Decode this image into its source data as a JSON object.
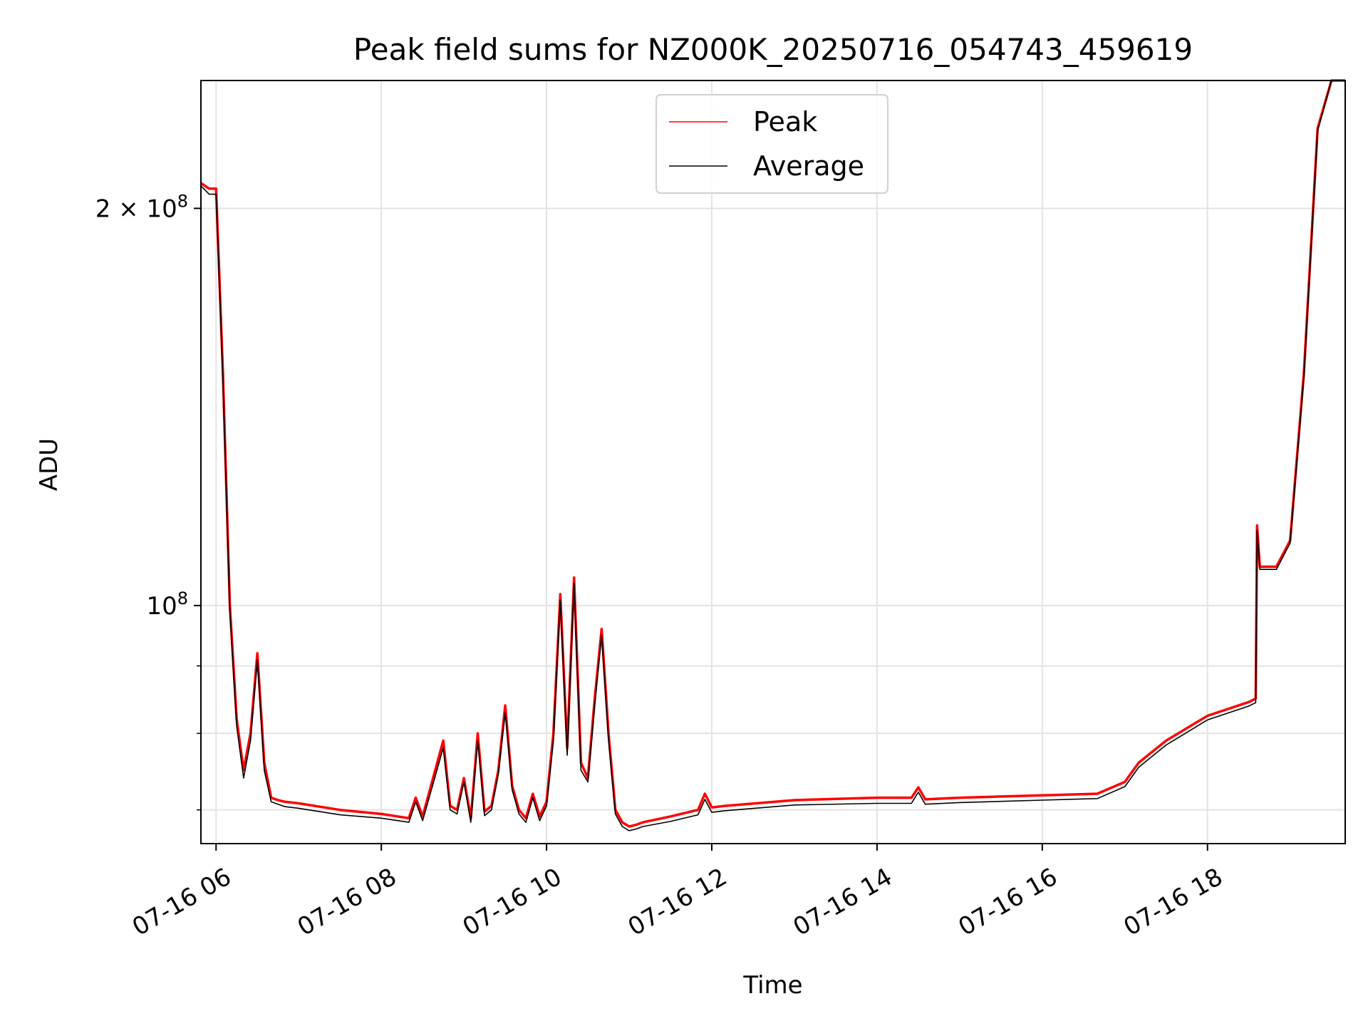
{
  "chart_data": {
    "type": "line",
    "title": "Peak field sums for NZ000K_20250716_054743_459619",
    "xlabel": "Time",
    "ylabel": "ADU",
    "yscale": "log",
    "xlim": [
      "2025-07-16 05:49",
      "2025-07-16 19:40"
    ],
    "ylim": [
      66000000,
      250000000
    ],
    "grid": true,
    "legend_position": "upper center",
    "x_ticks": [
      {
        "value": "2025-07-16 06:00",
        "label": "07-16 06"
      },
      {
        "value": "2025-07-16 08:00",
        "label": "07-16 08"
      },
      {
        "value": "2025-07-16 10:00",
        "label": "07-16 10"
      },
      {
        "value": "2025-07-16 12:00",
        "label": "07-16 12"
      },
      {
        "value": "2025-07-16 14:00",
        "label": "07-16 14"
      },
      {
        "value": "2025-07-16 16:00",
        "label": "07-16 16"
      },
      {
        "value": "2025-07-16 18:00",
        "label": "07-16 18"
      }
    ],
    "y_major_ticks": [
      {
        "value": 100000000,
        "base": "10",
        "exp": "8",
        "mantissa": ""
      },
      {
        "value": 200000000,
        "base": "10",
        "exp": "8",
        "mantissa": "2 × "
      }
    ],
    "y_minor_ticks": [
      70000000,
      80000000,
      90000000
    ],
    "series": [
      {
        "name": "Peak",
        "color": "#ff0000",
        "x": [
          "2025-07-16 05:49",
          "2025-07-16 05:55",
          "2025-07-16 06:00",
          "2025-07-16 06:05",
          "2025-07-16 06:10",
          "2025-07-16 06:15",
          "2025-07-16 06:20",
          "2025-07-16 06:25",
          "2025-07-16 06:30",
          "2025-07-16 06:35",
          "2025-07-16 06:40",
          "2025-07-16 06:45",
          "2025-07-16 06:50",
          "2025-07-16 07:00",
          "2025-07-16 07:30",
          "2025-07-16 08:00",
          "2025-07-16 08:20",
          "2025-07-16 08:25",
          "2025-07-16 08:30",
          "2025-07-16 08:45",
          "2025-07-16 08:50",
          "2025-07-16 08:55",
          "2025-07-16 09:00",
          "2025-07-16 09:05",
          "2025-07-16 09:10",
          "2025-07-16 09:15",
          "2025-07-16 09:20",
          "2025-07-16 09:25",
          "2025-07-16 09:30",
          "2025-07-16 09:35",
          "2025-07-16 09:40",
          "2025-07-16 09:45",
          "2025-07-16 09:50",
          "2025-07-16 09:55",
          "2025-07-16 10:00",
          "2025-07-16 10:05",
          "2025-07-16 10:10",
          "2025-07-16 10:15",
          "2025-07-16 10:20",
          "2025-07-16 10:25",
          "2025-07-16 10:30",
          "2025-07-16 10:35",
          "2025-07-16 10:40",
          "2025-07-16 10:45",
          "2025-07-16 10:50",
          "2025-07-16 10:55",
          "2025-07-16 11:00",
          "2025-07-16 11:05",
          "2025-07-16 11:10",
          "2025-07-16 11:30",
          "2025-07-16 11:50",
          "2025-07-16 11:55",
          "2025-07-16 12:00",
          "2025-07-16 12:10",
          "2025-07-16 13:00",
          "2025-07-16 14:00",
          "2025-07-16 14:25",
          "2025-07-16 14:30",
          "2025-07-16 14:35",
          "2025-07-16 15:00",
          "2025-07-16 16:00",
          "2025-07-16 16:40",
          "2025-07-16 17:00",
          "2025-07-16 17:10",
          "2025-07-16 17:30",
          "2025-07-16 18:00",
          "2025-07-16 18:30",
          "2025-07-16 18:35",
          "2025-07-16 18:36",
          "2025-07-16 18:38",
          "2025-07-16 18:50",
          "2025-07-16 19:00",
          "2025-07-16 19:10",
          "2025-07-16 19:20",
          "2025-07-16 19:30",
          "2025-07-16 19:40"
        ],
        "y": [
          209000000,
          207000000,
          207000000,
          150000000,
          100000000,
          82000000,
          75000000,
          80000000,
          92000000,
          76000000,
          71500000,
          71200000,
          71000000,
          70800000,
          70000000,
          69500000,
          69000000,
          71500000,
          69200000,
          79000000,
          70500000,
          70000000,
          74000000,
          69000000,
          80000000,
          69800000,
          70500000,
          75000000,
          84000000,
          73000000,
          70000000,
          69000000,
          72000000,
          69200000,
          71000000,
          80000000,
          102000000,
          78000000,
          105000000,
          76000000,
          74000000,
          85000000,
          96000000,
          80000000,
          70000000,
          68500000,
          68000000,
          68200000,
          68500000,
          69200000,
          70000000,
          72000000,
          70300000,
          70500000,
          71200000,
          71500000,
          71500000,
          72800000,
          71300000,
          71500000,
          71800000,
          72000000,
          73500000,
          76000000,
          79000000,
          82500000,
          84500000,
          85000000,
          115000000,
          107000000,
          107000000,
          112000000,
          150000000,
          230000000,
          250000000,
          250000000
        ]
      },
      {
        "name": "Average",
        "color": "#000000",
        "x": [
          "2025-07-16 05:49",
          "2025-07-16 05:55",
          "2025-07-16 06:00",
          "2025-07-16 06:05",
          "2025-07-16 06:10",
          "2025-07-16 06:15",
          "2025-07-16 06:20",
          "2025-07-16 06:25",
          "2025-07-16 06:30",
          "2025-07-16 06:35",
          "2025-07-16 06:40",
          "2025-07-16 06:45",
          "2025-07-16 06:50",
          "2025-07-16 07:00",
          "2025-07-16 07:30",
          "2025-07-16 08:00",
          "2025-07-16 08:20",
          "2025-07-16 08:25",
          "2025-07-16 08:30",
          "2025-07-16 08:45",
          "2025-07-16 08:50",
          "2025-07-16 08:55",
          "2025-07-16 09:00",
          "2025-07-16 09:05",
          "2025-07-16 09:10",
          "2025-07-16 09:15",
          "2025-07-16 09:20",
          "2025-07-16 09:25",
          "2025-07-16 09:30",
          "2025-07-16 09:35",
          "2025-07-16 09:40",
          "2025-07-16 09:45",
          "2025-07-16 09:50",
          "2025-07-16 09:55",
          "2025-07-16 10:00",
          "2025-07-16 10:05",
          "2025-07-16 10:10",
          "2025-07-16 10:15",
          "2025-07-16 10:20",
          "2025-07-16 10:25",
          "2025-07-16 10:30",
          "2025-07-16 10:35",
          "2025-07-16 10:40",
          "2025-07-16 10:45",
          "2025-07-16 10:50",
          "2025-07-16 10:55",
          "2025-07-16 11:00",
          "2025-07-16 11:05",
          "2025-07-16 11:10",
          "2025-07-16 11:30",
          "2025-07-16 11:50",
          "2025-07-16 11:55",
          "2025-07-16 12:00",
          "2025-07-16 12:10",
          "2025-07-16 13:00",
          "2025-07-16 14:00",
          "2025-07-16 14:25",
          "2025-07-16 14:30",
          "2025-07-16 14:35",
          "2025-07-16 15:00",
          "2025-07-16 16:00",
          "2025-07-16 16:40",
          "2025-07-16 17:00",
          "2025-07-16 17:10",
          "2025-07-16 17:30",
          "2025-07-16 18:00",
          "2025-07-16 18:30",
          "2025-07-16 18:35",
          "2025-07-16 18:36",
          "2025-07-16 18:38",
          "2025-07-16 18:50",
          "2025-07-16 19:00",
          "2025-07-16 19:10",
          "2025-07-16 19:20",
          "2025-07-16 19:30",
          "2025-07-16 19:40"
        ],
        "y": [
          208000000,
          205000000,
          205000000,
          148000000,
          99000000,
          81000000,
          74000000,
          79000000,
          91000000,
          75000000,
          71000000,
          70700000,
          70400000,
          70200000,
          69400000,
          69000000,
          68500000,
          71000000,
          68700000,
          78000000,
          70000000,
          69500000,
          73500000,
          68500000,
          79000000,
          69300000,
          70000000,
          74500000,
          83000000,
          72500000,
          69500000,
          68500000,
          71500000,
          68700000,
          70500000,
          79000000,
          101000000,
          77000000,
          104000000,
          75000000,
          73500000,
          84000000,
          95000000,
          79000000,
          69500000,
          68000000,
          67500000,
          67700000,
          68000000,
          68600000,
          69400000,
          71300000,
          69700000,
          69900000,
          70600000,
          70800000,
          70800000,
          72200000,
          70700000,
          70900000,
          71200000,
          71400000,
          72900000,
          75400000,
          78400000,
          81900000,
          83900000,
          84400000,
          114000000,
          106500000,
          106500000,
          111500000,
          149000000,
          229000000,
          250000000,
          250000000
        ]
      }
    ]
  }
}
